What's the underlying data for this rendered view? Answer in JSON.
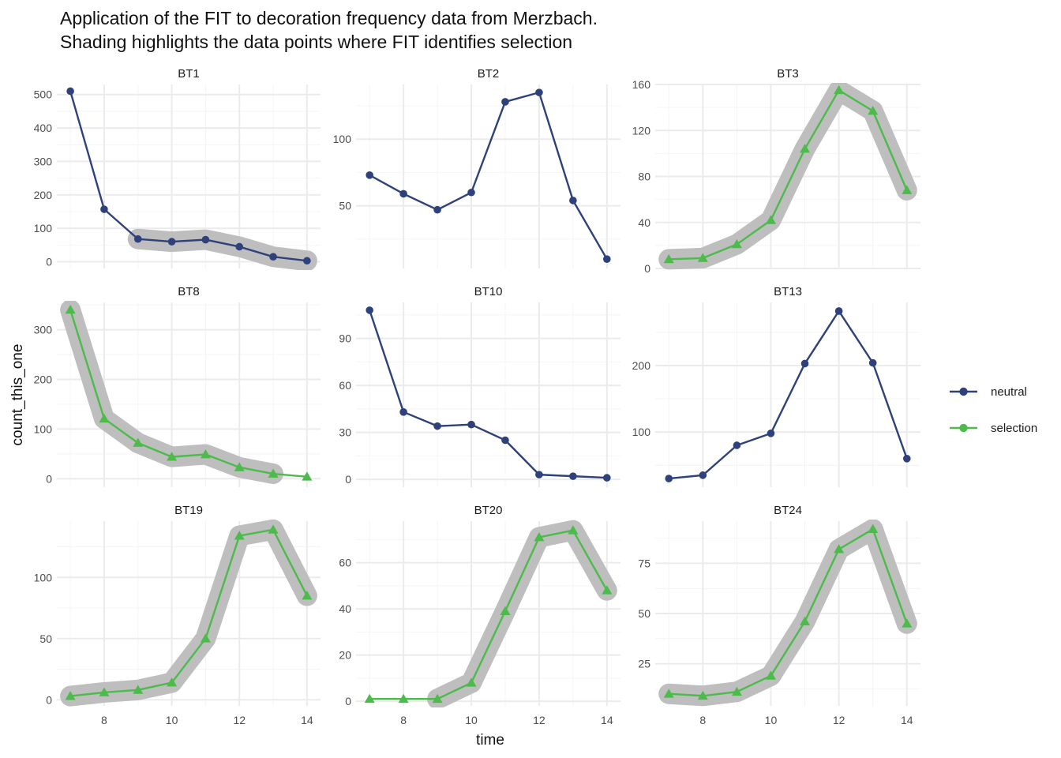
{
  "title_lines": [
    "Application of the FIT to decoration frequency data from Merzbach.",
    "Shading highlights the data points where FIT identifies selection"
  ],
  "colors": {
    "neutral": "#2F417A",
    "selection": "#4DBB4C",
    "shading": "#BEBEBE",
    "grid": "#EBEBEB"
  },
  "chart_data": {
    "type": "line",
    "xlabel": "time",
    "ylabel": "count_this_one",
    "x": [
      7,
      8,
      9,
      10,
      11,
      12,
      13,
      14
    ],
    "xlim": [
      6.6,
      14.4
    ],
    "xticks": [
      8,
      10,
      12,
      14
    ],
    "legend": {
      "position": "right",
      "entries": [
        {
          "name": "neutral",
          "color": "#2F417A"
        },
        {
          "name": "selection",
          "color": "#4DBB4C"
        }
      ]
    },
    "panels": [
      {
        "name": "BT1",
        "status": "neutral",
        "values": [
          510,
          157,
          68,
          60,
          66,
          45,
          15,
          3
        ],
        "shaded": [
          false,
          false,
          true,
          true,
          true,
          true,
          true,
          true
        ],
        "ylim": [
          -20,
          530
        ],
        "yticks": [
          0,
          100,
          200,
          300,
          400,
          500
        ]
      },
      {
        "name": "BT2",
        "status": "neutral",
        "values": [
          73,
          59,
          47,
          60,
          128,
          135,
          54,
          10
        ],
        "shaded": [
          false,
          false,
          false,
          false,
          false,
          false,
          false,
          false
        ],
        "ylim": [
          3,
          141
        ],
        "yticks": [
          50,
          100
        ]
      },
      {
        "name": "BT3",
        "status": "selection",
        "values": [
          8,
          9,
          21,
          42,
          104,
          155,
          137,
          68
        ],
        "shaded": [
          true,
          true,
          true,
          true,
          true,
          true,
          true,
          true
        ],
        "ylim": [
          0,
          160
        ],
        "yticks": [
          0,
          40,
          80,
          120,
          160
        ]
      },
      {
        "name": "BT8",
        "status": "selection",
        "values": [
          340,
          121,
          72,
          44,
          49,
          23,
          10,
          4
        ],
        "shaded": [
          true,
          true,
          true,
          true,
          true,
          true,
          true,
          false
        ],
        "ylim": [
          -17,
          355
        ],
        "yticks": [
          0,
          100,
          200,
          300
        ]
      },
      {
        "name": "BT10",
        "status": "neutral",
        "values": [
          108,
          43,
          34,
          35,
          25,
          3,
          2,
          1
        ],
        "shaded": [
          false,
          false,
          false,
          false,
          false,
          false,
          false,
          false
        ],
        "ylim": [
          -5,
          113
        ],
        "yticks": [
          0,
          30,
          60,
          90
        ]
      },
      {
        "name": "BT13",
        "status": "neutral",
        "values": [
          30,
          35,
          80,
          98,
          203,
          282,
          204,
          60
        ],
        "shaded": [
          false,
          false,
          false,
          false,
          false,
          false,
          false,
          false
        ],
        "ylim": [
          17,
          295
        ],
        "yticks": [
          100,
          200
        ]
      },
      {
        "name": "BT19",
        "status": "selection",
        "values": [
          3,
          6,
          8,
          14,
          50,
          134,
          139,
          85
        ],
        "shaded": [
          true,
          true,
          true,
          true,
          true,
          true,
          true,
          true
        ],
        "ylim": [
          -5,
          146
        ],
        "yticks": [
          0,
          50,
          100
        ]
      },
      {
        "name": "BT20",
        "status": "selection",
        "values": [
          1,
          1,
          1,
          8,
          39,
          71,
          74,
          48
        ],
        "shaded": [
          false,
          false,
          true,
          true,
          true,
          true,
          true,
          true
        ],
        "ylim": [
          -2,
          78
        ],
        "yticks": [
          0,
          20,
          40,
          60
        ]
      },
      {
        "name": "BT24",
        "status": "selection",
        "values": [
          10,
          9,
          11,
          19,
          46,
          82,
          92,
          45
        ],
        "shaded": [
          true,
          true,
          true,
          true,
          true,
          true,
          true,
          true
        ],
        "ylim": [
          4,
          96
        ],
        "yticks": [
          25,
          50,
          75
        ]
      }
    ]
  }
}
